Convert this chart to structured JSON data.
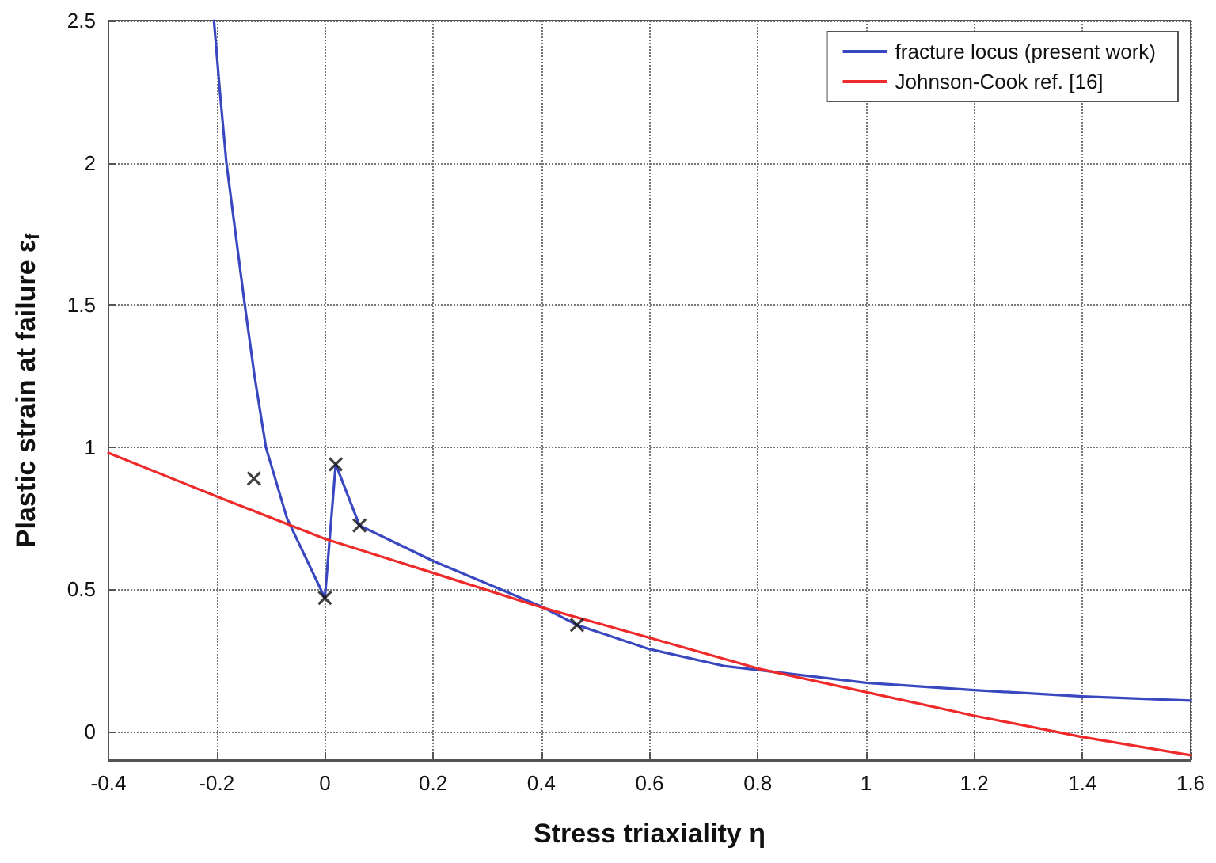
{
  "chart_data": {
    "type": "line",
    "xlabel": "Stress triaxiality η",
    "ylabel": "Plastic strain at failure ε$_{f}$",
    "xlim": [
      -0.4,
      1.6
    ],
    "xticks": [
      -0.4,
      -0.2,
      0,
      0.2,
      0.4,
      0.6,
      0.8,
      1,
      1.2,
      1.4,
      1.6
    ],
    "ylim": [
      -0.1,
      2.5
    ],
    "yticks": [
      0,
      0.5,
      1,
      1.5,
      2,
      2.5
    ],
    "grid": true,
    "legend": "top right",
    "line_style": "solid",
    "series": [
      {
        "name": "fracture locus (present work)",
        "color": "#3a48c0",
        "x": [
          -0.205,
          -0.194,
          -0.182,
          -0.165,
          -0.148,
          -0.13,
          -0.109,
          -0.07,
          0,
          0.02,
          0.064,
          0.2,
          0.4,
          0.466,
          0.6,
          0.74,
          0.8,
          1.0,
          1.2,
          1.4,
          1.6
        ],
        "values": [
          2.5,
          2.25,
          2.0,
          1.75,
          1.5,
          1.25,
          1.0,
          0.75,
          0.47,
          0.94,
          0.725,
          0.6,
          0.44,
          0.375,
          0.29,
          0.23,
          0.217,
          0.172,
          0.146,
          0.124,
          0.109
        ]
      },
      {
        "name": "Johnson-Cook ref. [16]",
        "color": "#ee2a2a",
        "x": [
          -0.4,
          -0.2,
          0,
          0.2,
          0.4,
          0.6,
          0.8,
          1.0,
          1.2,
          1.4,
          1.6
        ],
        "values": [
          0.98,
          0.827,
          0.678,
          0.558,
          0.437,
          0.33,
          0.222,
          0.139,
          0.056,
          -0.019,
          -0.083
        ]
      },
      {
        "color": "#111111",
        "type": "scatter",
        "marker": "cross",
        "x": [
          -0.131,
          0,
          0.02,
          0.064,
          0.466
        ],
        "values": [
          0.89,
          0.47,
          0.94,
          0.725,
          0.375
        ]
      }
    ]
  }
}
